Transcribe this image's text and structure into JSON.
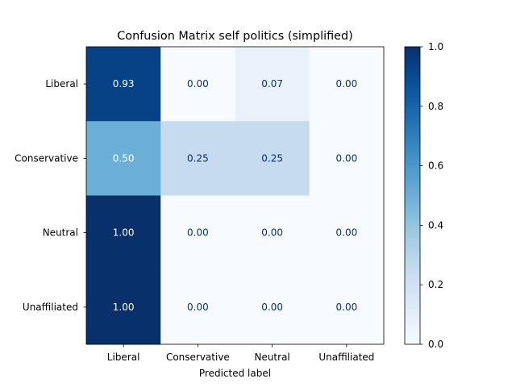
{
  "chart_data": {
    "type": "heatmap",
    "title": "Confusion Matrix self politics (simplified)",
    "xlabel": "Predicted label",
    "ylabel": "",
    "x_categories": [
      "Liberal",
      "Conservative",
      "Neutral",
      "Unaffiliated"
    ],
    "y_categories": [
      "Liberal",
      "Conservative",
      "Neutral",
      "Unaffiliated"
    ],
    "values": [
      [
        0.93,
        0.0,
        0.07,
        0.0
      ],
      [
        0.5,
        0.25,
        0.25,
        0.0
      ],
      [
        1.0,
        0.0,
        0.0,
        0.0
      ],
      [
        1.0,
        0.0,
        0.0,
        0.0
      ]
    ],
    "cell_labels": [
      [
        "0.93",
        "0.00",
        "0.07",
        "0.00"
      ],
      [
        "0.50",
        "0.25",
        "0.25",
        "0.00"
      ],
      [
        "1.00",
        "0.00",
        "0.00",
        "0.00"
      ],
      [
        "1.00",
        "0.00",
        "0.00",
        "0.00"
      ]
    ],
    "colormap": "Blues",
    "colorbar": {
      "range": [
        0,
        1
      ],
      "ticks": [
        0.0,
        0.2,
        0.4,
        0.6,
        0.8,
        1.0
      ],
      "tick_labels": [
        "0.0",
        "0.2",
        "0.4",
        "0.6",
        "0.8",
        "1.0"
      ]
    },
    "grid": false
  }
}
